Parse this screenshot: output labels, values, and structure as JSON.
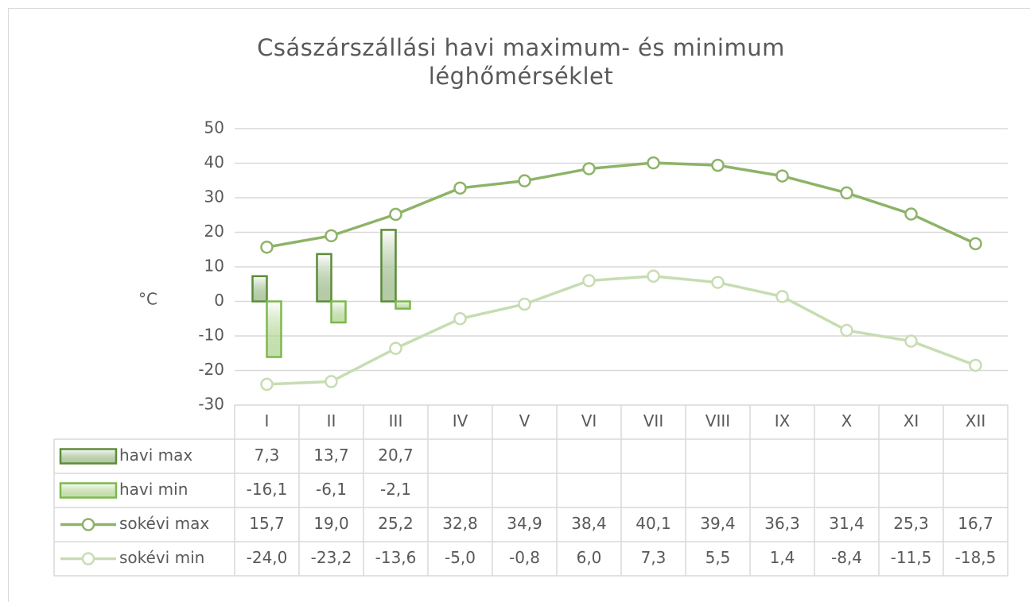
{
  "chart_data": {
    "type": "bar",
    "title": "Császárszállási havi maximum- és minimum léghőmérséklet",
    "y_label": "°C",
    "categories": [
      "I",
      "II",
      "III",
      "IV",
      "V",
      "VI",
      "VII",
      "VIII",
      "IX",
      "X",
      "XI",
      "XII"
    ],
    "ylim": [
      -30,
      50
    ],
    "yticks": [
      -30,
      -20,
      -10,
      0,
      10,
      20,
      30,
      40,
      50
    ],
    "grid": true,
    "series": [
      {
        "name": "havi max",
        "type": "bar",
        "color": "#5b8c3a",
        "values": [
          7.3,
          13.7,
          20.7,
          null,
          null,
          null,
          null,
          null,
          null,
          null,
          null,
          null
        ],
        "value_labels": [
          "7,3",
          "13,7",
          "20,7",
          null,
          null,
          null,
          null,
          null,
          null,
          null,
          null,
          null
        ]
      },
      {
        "name": "havi min",
        "type": "bar",
        "color": "#7db84c",
        "values": [
          -16.1,
          -6.1,
          -2.1,
          null,
          null,
          null,
          null,
          null,
          null,
          null,
          null,
          null
        ],
        "value_labels": [
          "-16,1",
          "-6,1",
          "-2,1",
          null,
          null,
          null,
          null,
          null,
          null,
          null,
          null,
          null
        ]
      },
      {
        "name": "sokévi max",
        "type": "line",
        "color": "#8db368",
        "values": [
          15.7,
          19.0,
          25.2,
          32.8,
          34.9,
          38.4,
          40.1,
          39.4,
          36.3,
          31.4,
          25.3,
          16.7
        ],
        "value_labels": [
          "15,7",
          "19,0",
          "25,2",
          "32,8",
          "34,9",
          "38,4",
          "40,1",
          "39,4",
          "36,3",
          "31,4",
          "25,3",
          "16,7"
        ]
      },
      {
        "name": "sokévi min",
        "type": "line",
        "color": "#c6ddb2",
        "values": [
          -24.0,
          -23.2,
          -13.6,
          -5.0,
          -0.8,
          6.0,
          7.3,
          5.5,
          1.4,
          -8.4,
          -11.5,
          -18.5
        ],
        "value_labels": [
          "-24,0",
          "-23,2",
          "-13,6",
          "-5,0",
          "-0,8",
          "6,0",
          "7,3",
          "5,5",
          "1,4",
          "-8,4",
          "-11,5",
          "-18,5"
        ]
      }
    ]
  }
}
